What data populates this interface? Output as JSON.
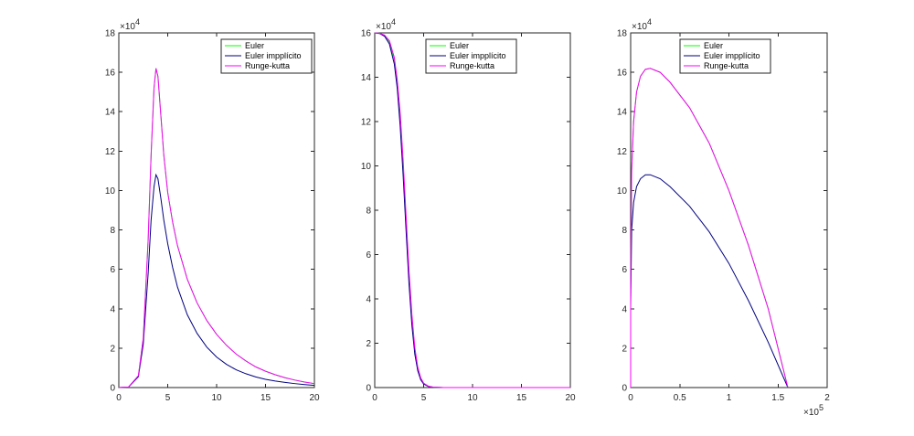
{
  "chart_data": [
    {
      "type": "line",
      "xlim": [
        0,
        20
      ],
      "ylim": [
        0,
        180000
      ],
      "x_ticks": [
        0,
        5,
        10,
        15,
        20
      ],
      "y_ticks": [
        0,
        20000,
        40000,
        60000,
        80000,
        100000,
        120000,
        140000,
        160000,
        180000
      ],
      "x_tick_labels": [
        "0",
        "5",
        "10",
        "15",
        "20"
      ],
      "y_tick_labels": [
        "0",
        "2",
        "4",
        "6",
        "8",
        "10",
        "12",
        "14",
        "16",
        "18"
      ],
      "y_exponent": "4",
      "x_exponent": "",
      "legend_placement": "top-right",
      "grid": false,
      "series": [
        {
          "name": "Euler",
          "color": "#00ff00",
          "x": [
            0,
            1,
            2,
            2.5,
            3,
            3.3,
            3.6,
            3.8,
            4.0,
            4.3,
            4.6,
            5,
            5.5,
            6,
            7,
            8,
            9,
            10,
            11,
            12,
            13,
            14,
            15,
            16,
            17,
            18,
            19,
            20
          ],
          "y": [
            0,
            300,
            6000,
            25000,
            75000,
            118000,
            152000,
            162000,
            158000,
            138000,
            118000,
            99000,
            84000,
            72000,
            55000,
            43000,
            34000,
            27000,
            21500,
            17000,
            13500,
            10500,
            8300,
            6500,
            5000,
            3800,
            2800,
            2000
          ]
        },
        {
          "name": "Euler impplícito",
          "color": "#00007f",
          "x": [
            0,
            1,
            2,
            2.5,
            3,
            3.3,
            3.6,
            3.8,
            4.0,
            4.3,
            4.6,
            5,
            5.5,
            6,
            7,
            8,
            9,
            10,
            11,
            12,
            13,
            14,
            15,
            16,
            17,
            18,
            19,
            20
          ],
          "y": [
            0,
            300,
            5500,
            22000,
            58000,
            85000,
            102000,
            108000,
            106000,
            96000,
            85000,
            73000,
            61000,
            51000,
            37000,
            27500,
            20500,
            15500,
            11800,
            9000,
            7000,
            5400,
            4200,
            3300,
            2600,
            2000,
            1500,
            1100
          ]
        },
        {
          "name": "Runge-kutta",
          "color": "#ff00ff",
          "x": [
            0,
            1,
            2,
            2.5,
            3,
            3.3,
            3.6,
            3.8,
            4.0,
            4.3,
            4.6,
            5,
            5.5,
            6,
            7,
            8,
            9,
            10,
            11,
            12,
            13,
            14,
            15,
            16,
            17,
            18,
            19,
            20
          ],
          "y": [
            0,
            300,
            6000,
            25000,
            75000,
            118000,
            152000,
            162000,
            158000,
            138000,
            118000,
            99000,
            84000,
            72000,
            55000,
            43000,
            34000,
            27000,
            21500,
            17000,
            13500,
            10500,
            8300,
            6500,
            5000,
            3800,
            2800,
            2000
          ]
        }
      ]
    },
    {
      "type": "line",
      "xlim": [
        0,
        20
      ],
      "ylim": [
        0,
        160000
      ],
      "x_ticks": [
        0,
        5,
        10,
        15,
        20
      ],
      "y_ticks": [
        0,
        20000,
        40000,
        60000,
        80000,
        100000,
        120000,
        140000,
        160000
      ],
      "x_tick_labels": [
        "0",
        "5",
        "10",
        "15",
        "20"
      ],
      "y_tick_labels": [
        "0",
        "2",
        "4",
        "6",
        "8",
        "10",
        "12",
        "14",
        "16"
      ],
      "y_exponent": "4",
      "x_exponent": "",
      "legend_placement": "top-right",
      "grid": false,
      "series": [
        {
          "name": "Euler",
          "color": "#00ff00",
          "x": [
            0,
            0.5,
            1,
            1.5,
            2,
            2.3,
            2.6,
            2.9,
            3.2,
            3.5,
            3.8,
            4.1,
            4.4,
            4.7,
            5,
            5.5,
            6,
            7,
            8,
            10,
            12,
            15,
            20
          ],
          "y": [
            160000,
            159800,
            159000,
            156000,
            148000,
            138000,
            122000,
            100000,
            75000,
            50000,
            30000,
            16000,
            8000,
            3800,
            1700,
            500,
            150,
            20,
            0,
            0,
            0,
            0,
            0
          ]
        },
        {
          "name": "Euler impplícito",
          "color": "#00007f",
          "x": [
            0,
            0.5,
            1,
            1.5,
            2,
            2.3,
            2.6,
            2.9,
            3.2,
            3.5,
            3.8,
            4.1,
            4.4,
            4.7,
            5,
            5.5,
            6,
            7,
            8,
            10,
            12,
            15,
            20
          ],
          "y": [
            160000,
            159700,
            158500,
            155000,
            146000,
            135000,
            118000,
            96000,
            71000,
            47000,
            28000,
            15000,
            7500,
            3500,
            1600,
            450,
            130,
            15,
            0,
            0,
            0,
            0,
            0
          ]
        },
        {
          "name": "Runge-kutta",
          "color": "#ff00ff",
          "x": [
            0,
            0.5,
            1,
            1.5,
            2,
            2.3,
            2.6,
            2.9,
            3.2,
            3.5,
            3.8,
            4.1,
            4.4,
            4.7,
            5,
            5.5,
            6,
            7,
            8,
            10,
            12,
            15,
            20
          ],
          "y": [
            160000,
            159800,
            159000,
            156500,
            149000,
            139000,
            124000,
            103000,
            78000,
            53000,
            33000,
            18000,
            9200,
            4400,
            2000,
            600,
            180,
            25,
            0,
            0,
            0,
            0,
            0
          ]
        }
      ]
    },
    {
      "type": "line",
      "xlim": [
        0,
        200000
      ],
      "ylim": [
        0,
        180000
      ],
      "x_ticks": [
        0,
        50000,
        100000,
        150000,
        200000
      ],
      "y_ticks": [
        0,
        20000,
        40000,
        60000,
        80000,
        100000,
        120000,
        140000,
        160000,
        180000
      ],
      "x_tick_labels": [
        "0",
        "0.5",
        "1",
        "1.5",
        "2"
      ],
      "y_tick_labels": [
        "0",
        "2",
        "4",
        "6",
        "8",
        "10",
        "12",
        "14",
        "16",
        "18"
      ],
      "y_exponent": "4",
      "x_exponent": "5",
      "legend_placement": "top-right",
      "grid": false,
      "series": [
        {
          "name": "Euler",
          "color": "#00ff00",
          "x": [
            0,
            0,
            1000,
            3000,
            6000,
            10000,
            15000,
            20000,
            30000,
            40000,
            60000,
            80000,
            100000,
            120000,
            140000,
            160000
          ],
          "y": [
            0,
            50000,
            110000,
            135000,
            150000,
            158000,
            161500,
            162000,
            160000,
            155000,
            142000,
            124000,
            100000,
            72000,
            40000,
            0
          ]
        },
        {
          "name": "Euler impplícito",
          "color": "#00007f",
          "x": [
            0,
            0,
            1000,
            3000,
            6000,
            10000,
            15000,
            20000,
            30000,
            40000,
            60000,
            80000,
            100000,
            120000,
            140000,
            160000
          ],
          "y": [
            0,
            40000,
            80000,
            94000,
            102000,
            106000,
            108000,
            108000,
            106000,
            102000,
            92000,
            79000,
            63000,
            44000,
            23000,
            0
          ]
        },
        {
          "name": "Runge-kutta",
          "color": "#ff00ff",
          "x": [
            0,
            0,
            1000,
            3000,
            6000,
            10000,
            15000,
            20000,
            30000,
            40000,
            60000,
            80000,
            100000,
            120000,
            140000,
            160000
          ],
          "y": [
            0,
            50000,
            110000,
            135000,
            150000,
            158000,
            161500,
            162000,
            160000,
            155000,
            142000,
            124000,
            100000,
            72000,
            40000,
            0
          ]
        }
      ]
    }
  ]
}
